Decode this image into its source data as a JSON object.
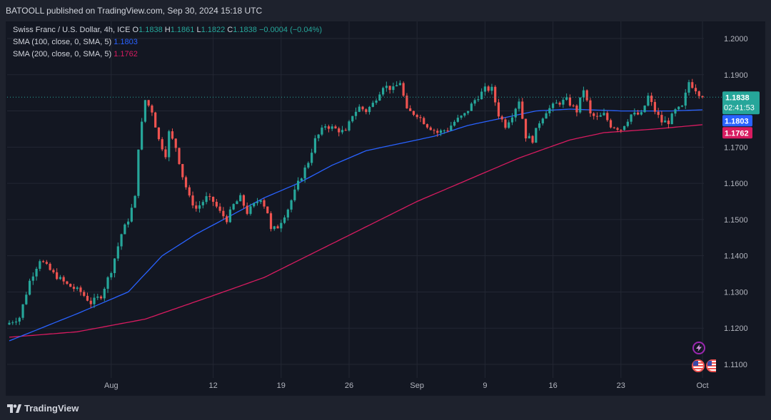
{
  "header": {
    "publisher_line": "BATOOLL published on TradingView.com, Sep 30, 2024 15:18 UTC"
  },
  "legend": {
    "symbol": "Swiss Franc / U.S. Dollar, 4h, ICE",
    "o_label": "O",
    "o_value": "1.1838",
    "h_label": "H",
    "h_value": "1.1861",
    "l_label": "L",
    "l_value": "1.1822",
    "c_label": "C",
    "c_value": "1.1838",
    "change": "−0.0004 (−0.04%)",
    "sma100_label": "SMA (100, close, 0, SMA, 5)",
    "sma100_value": "1.1803",
    "sma200_label": "SMA (200, close, 0, SMA, 5)",
    "sma200_value": "1.1762"
  },
  "price_tags": {
    "last_price": "1.1838",
    "countdown": "02:41:53",
    "sma100": "1.1803",
    "sma200": "1.1762"
  },
  "footer": {
    "brand": "TradingView"
  },
  "colors": {
    "up": "#26a69a",
    "down": "#ef5350",
    "sma100": "#2962ff",
    "sma200": "#d81b60",
    "background": "#131722",
    "grid": "#232733"
  },
  "chart_data": {
    "type": "candlestick",
    "ylim": [
      1.105,
      1.208
    ],
    "y_ticks": [
      "1.2000",
      "1.1900",
      "1.1800",
      "1.1700",
      "1.1600",
      "1.1500",
      "1.1400",
      "1.1300",
      "1.1200",
      "1.1100"
    ],
    "x_tick_labels": [
      "Aug",
      "12",
      "19",
      "26",
      "Sep",
      "9",
      "16",
      "23",
      "Oct"
    ],
    "x_tick_index": [
      30,
      60,
      80,
      100,
      120,
      140,
      160,
      180,
      204
    ],
    "anchors_close": [
      [
        0,
        1.1215
      ],
      [
        3,
        1.123
      ],
      [
        6,
        1.133
      ],
      [
        9,
        1.139
      ],
      [
        13,
        1.135
      ],
      [
        17,
        1.132
      ],
      [
        21,
        1.13
      ],
      [
        24,
        1.127
      ],
      [
        27,
        1.129
      ],
      [
        30,
        1.136
      ],
      [
        33,
        1.146
      ],
      [
        35,
        1.15
      ],
      [
        37,
        1.156
      ],
      [
        38,
        1.17
      ],
      [
        40,
        1.183
      ],
      [
        42,
        1.18
      ],
      [
        44,
        1.172
      ],
      [
        46,
        1.168
      ],
      [
        47,
        1.174
      ],
      [
        49,
        1.17
      ],
      [
        51,
        1.162
      ],
      [
        53,
        1.156
      ],
      [
        55,
        1.153
      ],
      [
        58,
        1.156
      ],
      [
        60,
        1.155
      ],
      [
        62,
        1.152
      ],
      [
        64,
        1.15
      ],
      [
        66,
        1.154
      ],
      [
        68,
        1.156
      ],
      [
        70,
        1.152
      ],
      [
        72,
        1.154
      ],
      [
        74,
        1.156
      ],
      [
        76,
        1.152
      ],
      [
        77,
        1.147
      ],
      [
        79,
        1.148
      ],
      [
        82,
        1.153
      ],
      [
        85,
        1.16
      ],
      [
        88,
        1.166
      ],
      [
        90,
        1.172
      ],
      [
        93,
        1.176
      ],
      [
        96,
        1.175
      ],
      [
        99,
        1.174
      ],
      [
        101,
        1.179
      ],
      [
        103,
        1.181
      ],
      [
        105,
        1.18
      ],
      [
        107,
        1.182
      ],
      [
        110,
        1.187
      ],
      [
        113,
        1.186
      ],
      [
        115,
        1.188
      ],
      [
        117,
        1.18
      ],
      [
        120,
        1.179
      ],
      [
        123,
        1.176
      ],
      [
        126,
        1.174
      ],
      [
        129,
        1.175
      ],
      [
        131,
        1.177
      ],
      [
        134,
        1.179
      ],
      [
        137,
        1.183
      ],
      [
        140,
        1.186
      ],
      [
        142,
        1.186
      ],
      [
        144,
        1.179
      ],
      [
        146,
        1.176
      ],
      [
        148,
        1.179
      ],
      [
        150,
        1.183
      ],
      [
        152,
        1.173
      ],
      [
        154,
        1.172
      ],
      [
        156,
        1.177
      ],
      [
        158,
        1.18
      ],
      [
        161,
        1.182
      ],
      [
        164,
        1.183
      ],
      [
        167,
        1.18
      ],
      [
        169,
        1.186
      ],
      [
        171,
        1.179
      ],
      [
        173,
        1.178
      ],
      [
        175,
        1.179
      ],
      [
        177,
        1.176
      ],
      [
        180,
        1.175
      ],
      [
        183,
        1.179
      ],
      [
        186,
        1.179
      ],
      [
        188,
        1.184
      ],
      [
        190,
        1.18
      ],
      [
        192,
        1.177
      ],
      [
        194,
        1.177
      ],
      [
        196,
        1.18
      ],
      [
        198,
        1.181
      ],
      [
        200,
        1.188
      ],
      [
        202,
        1.186
      ],
      [
        204,
        1.1838
      ]
    ],
    "candle_count": 205,
    "last_close": 1.1838,
    "sma100_anchors": [
      [
        0,
        1.1165
      ],
      [
        20,
        1.124
      ],
      [
        35,
        1.13
      ],
      [
        45,
        1.14
      ],
      [
        55,
        1.146
      ],
      [
        65,
        1.151
      ],
      [
        75,
        1.156
      ],
      [
        85,
        1.16
      ],
      [
        95,
        1.165
      ],
      [
        105,
        1.169
      ],
      [
        115,
        1.171
      ],
      [
        125,
        1.173
      ],
      [
        135,
        1.176
      ],
      [
        145,
        1.178
      ],
      [
        155,
        1.18
      ],
      [
        165,
        1.1805
      ],
      [
        180,
        1.18
      ],
      [
        195,
        1.18
      ],
      [
        204,
        1.1803
      ]
    ],
    "sma200_anchors": [
      [
        0,
        1.1175
      ],
      [
        20,
        1.119
      ],
      [
        40,
        1.1225
      ],
      [
        60,
        1.129
      ],
      [
        75,
        1.134
      ],
      [
        90,
        1.141
      ],
      [
        105,
        1.148
      ],
      [
        120,
        1.155
      ],
      [
        135,
        1.161
      ],
      [
        150,
        1.167
      ],
      [
        165,
        1.172
      ],
      [
        175,
        1.174
      ],
      [
        190,
        1.175
      ],
      [
        204,
        1.1762
      ]
    ]
  }
}
